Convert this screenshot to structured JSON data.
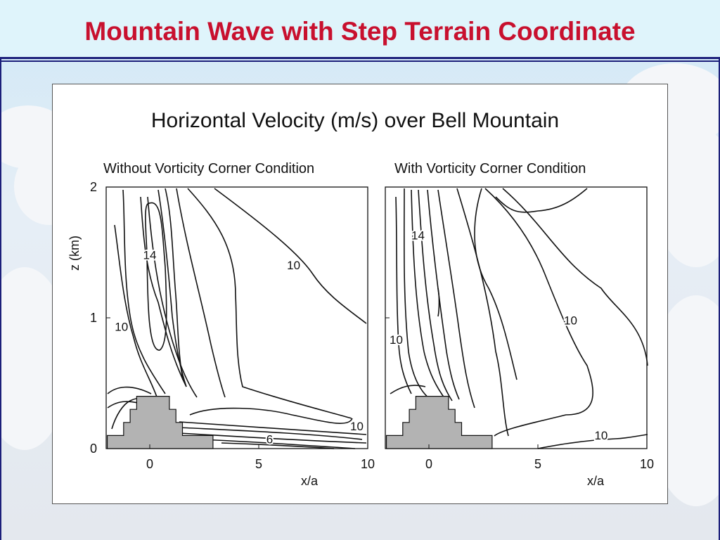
{
  "slide": {
    "title": "Mountain Wave with Step Terrain Coordinate"
  },
  "figure": {
    "title": "Horizontal Velocity (m/s) over Bell Mountain",
    "ylabel": "z (km)",
    "xlabel": "x/a"
  },
  "chart_data": [
    {
      "type": "contour",
      "subtitle": "Without Vorticity Corner Condition",
      "xlabel": "x/a",
      "ylabel": "z (km)",
      "xlim": [
        -2,
        10
      ],
      "ylim": [
        0,
        2
      ],
      "xticks": [
        0,
        5,
        10
      ],
      "yticks": [
        0,
        1,
        2
      ],
      "contour_labels": [
        {
          "text": "14",
          "x": 0.0,
          "y": 1.45
        },
        {
          "text": "10",
          "x": 6.6,
          "y": 1.37
        },
        {
          "text": "10",
          "x": -1.3,
          "y": 0.9
        },
        {
          "text": "10",
          "x": 9.5,
          "y": 0.14
        },
        {
          "text": "6",
          "x": 5.5,
          "y": 0.04
        }
      ],
      "terrain_steps": [
        [
          -1.95,
          0.1
        ],
        [
          -1.2,
          0.2
        ],
        [
          -0.9,
          0.3
        ],
        [
          -0.6,
          0.4
        ],
        [
          0.6,
          0.4
        ],
        [
          0.9,
          0.3
        ],
        [
          1.2,
          0.2
        ],
        [
          1.5,
          0.1
        ],
        [
          2.9,
          0.05
        ]
      ]
    },
    {
      "type": "contour",
      "subtitle": "With Vorticity Corner Condition",
      "xlabel": "x/a",
      "ylabel": "",
      "xlim": [
        -2,
        10
      ],
      "ylim": [
        0,
        2
      ],
      "xticks": [
        0,
        5,
        10
      ],
      "yticks": [
        0,
        1,
        2
      ],
      "contour_labels": [
        {
          "text": "14",
          "x": -0.5,
          "y": 1.6
        },
        {
          "text": "10",
          "x": 6.5,
          "y": 0.95
        },
        {
          "text": "10",
          "x": -1.5,
          "y": 0.8
        },
        {
          "text": "10",
          "x": 7.9,
          "y": 0.07
        }
      ],
      "terrain_steps": [
        [
          -1.95,
          0.1
        ],
        [
          -1.2,
          0.2
        ],
        [
          -0.9,
          0.3
        ],
        [
          -0.6,
          0.4
        ],
        [
          0.6,
          0.4
        ],
        [
          0.9,
          0.3
        ],
        [
          1.2,
          0.2
        ],
        [
          1.5,
          0.1
        ],
        [
          2.9,
          0.0
        ]
      ]
    }
  ]
}
